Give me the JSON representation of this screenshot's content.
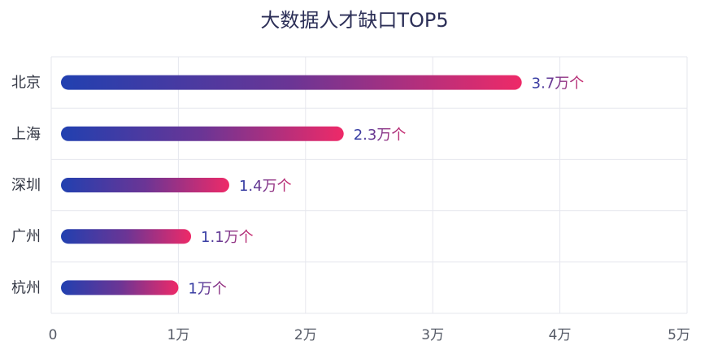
{
  "chart_data": {
    "type": "bar",
    "orientation": "horizontal",
    "title": "大数据人才缺口TOP5",
    "categories": [
      "北京",
      "上海",
      "深圳",
      "广州",
      "杭州"
    ],
    "values": [
      3.7,
      2.3,
      1.4,
      1.1,
      1
    ],
    "value_unit": "万",
    "value_labels": [
      "3.7万个",
      "2.3万个",
      "1.4万个",
      "1.1万个",
      "1万个"
    ],
    "x_ticks": [
      "0",
      "1万",
      "2万",
      "3万",
      "4万",
      "5万"
    ],
    "xlim": [
      0,
      5
    ],
    "grid": true,
    "colors": {
      "bar_start": "#2140b0",
      "bar_mid": "#6b3595",
      "bar_end": "#ee2a68",
      "label_start": "#2a3fa8",
      "label_end": "#e02a68",
      "grid": "#e6e7ee",
      "title": "#2c2f57"
    }
  }
}
